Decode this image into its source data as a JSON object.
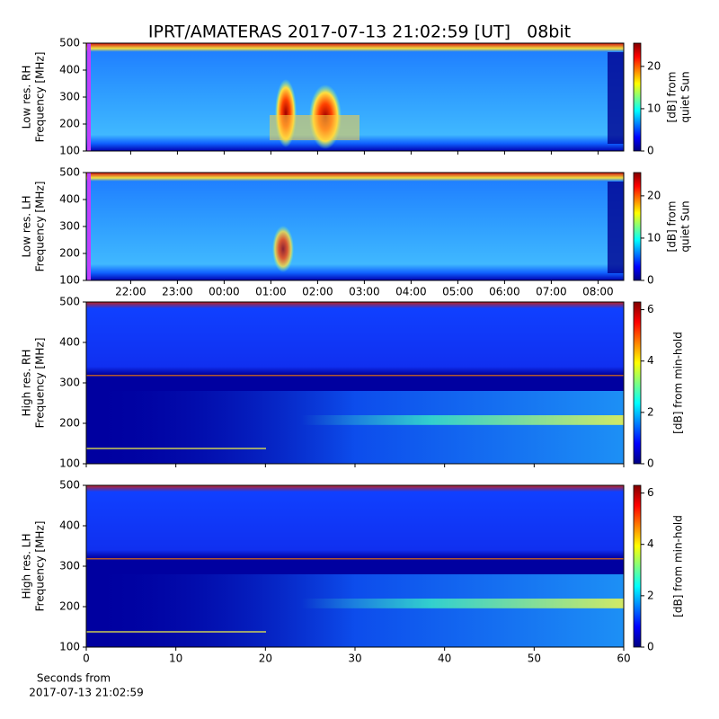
{
  "title": "IPRT/AMATERAS 2017-07-13 21:02:59 [UT]   08bit",
  "xlabel": [
    "Seconds from",
    "2017-07-13 21:02:59"
  ],
  "chart_data": [
    {
      "type": "heatmap",
      "ylabel": [
        "Low res. RH",
        "Frequency [MHz]"
      ],
      "ylim": [
        100,
        500
      ],
      "yticks": [
        100,
        200,
        300,
        400,
        500
      ],
      "cbar_label": [
        "[dB] from",
        "quiet Sun"
      ],
      "clim": [
        0,
        25.5
      ],
      "cticks": [
        0,
        10,
        20
      ]
    },
    {
      "type": "heatmap",
      "ylabel": [
        "Low res. LH",
        "Frequency [MHz]"
      ],
      "ylim": [
        100,
        500
      ],
      "yticks": [
        100,
        200,
        300,
        400,
        500
      ],
      "cbar_label": [
        "[dB] from",
        "quiet Sun"
      ],
      "clim": [
        0,
        25.5
      ],
      "cticks": [
        0,
        10,
        20
      ],
      "xlim": [
        21.05,
        32.55
      ],
      "xticks": [
        {
          "value": 22,
          "label": "22:00"
        },
        {
          "value": 23,
          "label": "23:00"
        },
        {
          "value": 24,
          "label": "00:00"
        },
        {
          "value": 25,
          "label": "01:00"
        },
        {
          "value": 26,
          "label": "02:00"
        },
        {
          "value": 27,
          "label": "03:00"
        },
        {
          "value": 28,
          "label": "04:00"
        },
        {
          "value": 29,
          "label": "05:00"
        },
        {
          "value": 30,
          "label": "06:00"
        },
        {
          "value": 31,
          "label": "07:00"
        },
        {
          "value": 32,
          "label": "08:00"
        }
      ]
    },
    {
      "type": "heatmap",
      "ylabel": [
        "High res. RH",
        "Frequency [MHz]"
      ],
      "ylim": [
        100,
        500
      ],
      "yticks": [
        100,
        200,
        300,
        400,
        500
      ],
      "cbar_label": [
        "[dB] from min-hold"
      ],
      "clim": [
        0,
        6.3
      ],
      "cticks": [
        0,
        2,
        4,
        6
      ]
    },
    {
      "type": "heatmap",
      "ylabel": [
        "High res. LH",
        "Frequency [MHz]"
      ],
      "ylim": [
        100,
        500
      ],
      "yticks": [
        100,
        200,
        300,
        400,
        500
      ],
      "cbar_label": [
        "[dB] from min-hold"
      ],
      "clim": [
        0,
        6.3
      ],
      "cticks": [
        0,
        2,
        4,
        6
      ],
      "xlim": [
        0,
        60
      ],
      "xticks": [
        0,
        10,
        20,
        30,
        40,
        50,
        60
      ]
    }
  ]
}
